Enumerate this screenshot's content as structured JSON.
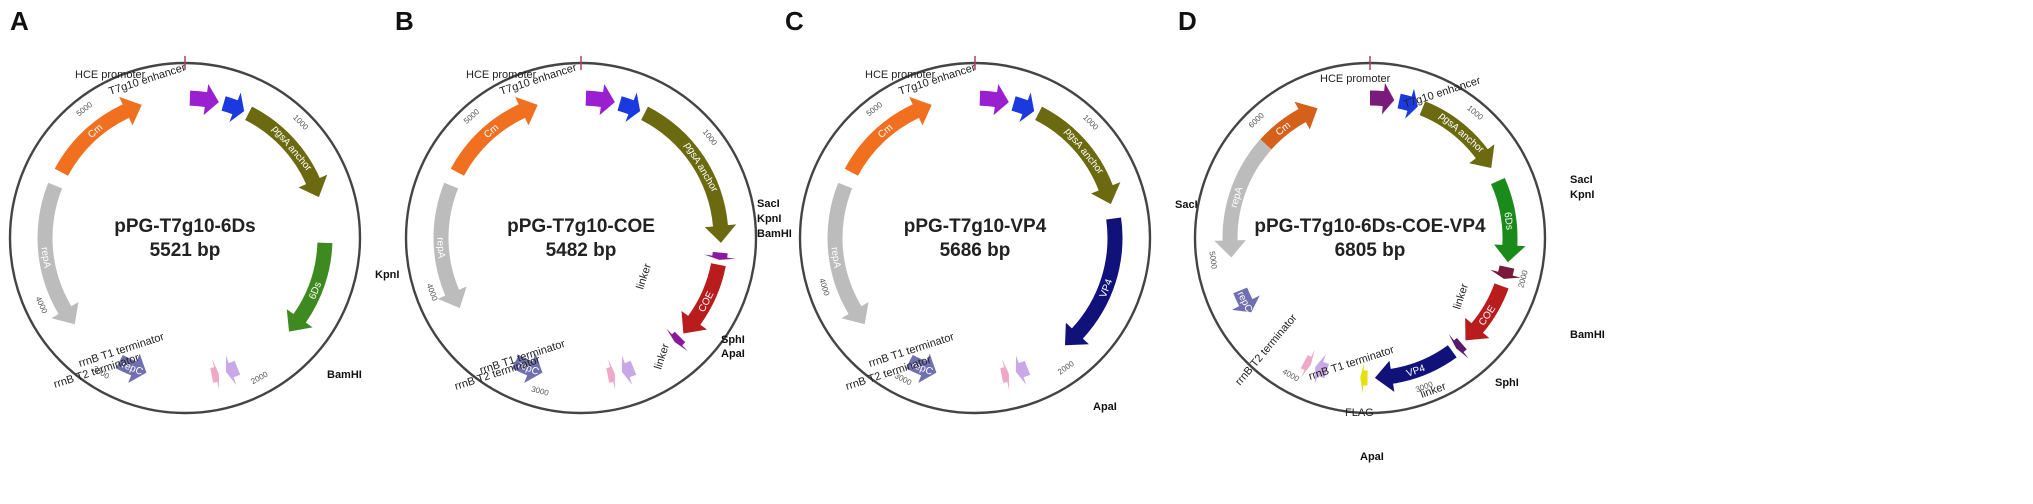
{
  "panels": [
    {
      "letter": "A",
      "name": "pPG-T7g10-6Ds",
      "size": "5521 bp",
      "features": [
        {
          "label": "Cm",
          "color": "#f07020"
        },
        {
          "label": "",
          "color": "#9a1fd0"
        },
        {
          "label": "",
          "color": "#1a3ae0"
        },
        {
          "label": "pgsA anchor",
          "color": "#6b6a10"
        },
        {
          "label": "6Ds",
          "color": "#3f8a20"
        },
        {
          "label": "",
          "color": "#c8a8e6"
        },
        {
          "label": "",
          "color": "#f0a8c8"
        },
        {
          "label": "repC",
          "color": "#7070b0"
        },
        {
          "label": "repA",
          "color": "#bcbcbc"
        }
      ],
      "labels": [
        "HCE promoter",
        "T7g10 enhancer",
        "rrnB T1 terminator",
        "rrnB T2 terminator"
      ],
      "sites": [
        "KpnI",
        "BamHI"
      ],
      "ticks": [
        "1000",
        "2000",
        "3000",
        "4000",
        "5000"
      ]
    },
    {
      "letter": "B",
      "name": "pPG-T7g10-COE",
      "size": "5482 bp",
      "features": [
        {
          "label": "Cm",
          "color": "#f07020"
        },
        {
          "label": "",
          "color": "#9a1fd0"
        },
        {
          "label": "",
          "color": "#1a3ae0"
        },
        {
          "label": "pgsA anchor",
          "color": "#6b6a10"
        },
        {
          "label": "",
          "color": "#8a1a9a"
        },
        {
          "label": "COE",
          "color": "#b81c1c"
        },
        {
          "label": "",
          "color": "#8a1a9a"
        },
        {
          "label": "",
          "color": "#c8a8e6"
        },
        {
          "label": "",
          "color": "#f0a8c8"
        },
        {
          "label": "repC",
          "color": "#7070b0"
        },
        {
          "label": "repA",
          "color": "#bcbcbc"
        }
      ],
      "labels": [
        "HCE promoter",
        "T7g10 enhancer",
        "linker",
        "linker",
        "rrnB T1 terminator",
        "rrnB T2 terminator"
      ],
      "sites": [
        "SacI",
        "KpnI",
        "BamHI",
        "SphI",
        "ApaI"
      ],
      "ticks": [
        "1000",
        "3000",
        "4000",
        "5000"
      ]
    },
    {
      "letter": "C",
      "name": "pPG-T7g10-VP4",
      "size": "5686 bp",
      "features": [
        {
          "label": "Cm",
          "color": "#f07020"
        },
        {
          "label": "",
          "color": "#9a1fd0"
        },
        {
          "label": "",
          "color": "#1a3ae0"
        },
        {
          "label": "pgsA anchor",
          "color": "#6b6a10"
        },
        {
          "label": "VP4",
          "color": "#10127a"
        },
        {
          "label": "",
          "color": "#c8a8e6"
        },
        {
          "label": "",
          "color": "#f0a8c8"
        },
        {
          "label": "repC",
          "color": "#7070b0"
        },
        {
          "label": "repA",
          "color": "#bcbcbc"
        }
      ],
      "labels": [
        "HCE promoter",
        "T7g10 enhancer",
        "rrnB T1 terminator",
        "rrnB T2 terminator"
      ],
      "sites": [
        "SacI",
        "ApaI"
      ],
      "ticks": [
        "1000",
        "2000",
        "3000",
        "4000",
        "5000"
      ]
    },
    {
      "letter": "D",
      "name": "pPG-T7g10-6Ds-COE-VP4",
      "size": "6805 bp",
      "features": [
        {
          "label": "Cm",
          "color": "#d4601a"
        },
        {
          "label": "",
          "color": "#7a1a7a"
        },
        {
          "label": "",
          "color": "#1a3ae0"
        },
        {
          "label": "pgsA anchor",
          "color": "#6b6a10"
        },
        {
          "label": "6Ds",
          "color": "#1a8a1a"
        },
        {
          "label": "",
          "color": "#7a1a3a"
        },
        {
          "label": "COE",
          "color": "#b81c1c"
        },
        {
          "label": "",
          "color": "#5a1a6a"
        },
        {
          "label": "VP4",
          "color": "#10127a"
        },
        {
          "label": "",
          "color": "#e6e010"
        },
        {
          "label": "",
          "color": "#c8a8e6"
        },
        {
          "label": "",
          "color": "#f0a8c8"
        },
        {
          "label": "repC",
          "color": "#7070b0"
        },
        {
          "label": "repA",
          "color": "#bcbcbc"
        }
      ],
      "labels": [
        "HCE promoter",
        "T7g10 enhancer",
        "linker",
        "linker",
        "rrnB T1 terminator",
        "rrnB T2 terminator",
        "FLAG"
      ],
      "sites": [
        "SacI",
        "KpnI",
        "BamHI",
        "SphI",
        "ApaI"
      ],
      "ticks": [
        "1000",
        "2000",
        "3000",
        "4000",
        "5000",
        "6000"
      ]
    }
  ]
}
